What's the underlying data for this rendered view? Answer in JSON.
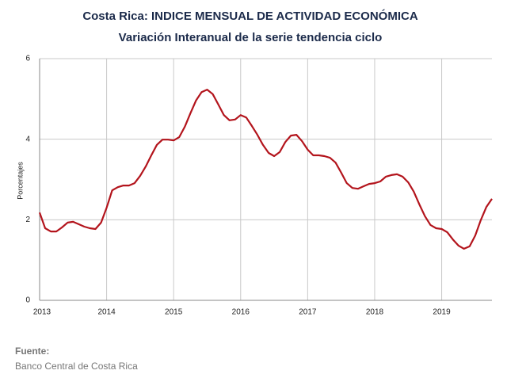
{
  "chart_data": {
    "type": "line",
    "title": "Costa Rica: INDICE MENSUAL DE ACTIVIDAD ECONÓMICA",
    "subtitle": "Variación Interanual de la serie tendencia ciclo",
    "y_label": "Porcentajes",
    "source_label": "Fuente:",
    "source": "Banco Central de Costa Rica",
    "x": [
      2013,
      2013.083,
      2013.167,
      2013.25,
      2013.333,
      2013.417,
      2013.5,
      2013.583,
      2013.667,
      2013.75,
      2013.833,
      2013.917,
      2014,
      2014.083,
      2014.167,
      2014.25,
      2014.333,
      2014.417,
      2014.5,
      2014.583,
      2014.667,
      2014.75,
      2014.833,
      2014.917,
      2015,
      2015.083,
      2015.167,
      2015.25,
      2015.333,
      2015.417,
      2015.5,
      2015.583,
      2015.667,
      2015.75,
      2015.833,
      2015.917,
      2016,
      2016.083,
      2016.167,
      2016.25,
      2016.333,
      2016.417,
      2016.5,
      2016.583,
      2016.667,
      2016.75,
      2016.833,
      2016.917,
      2017,
      2017.083,
      2017.167,
      2017.25,
      2017.333,
      2017.417,
      2017.5,
      2017.583,
      2017.667,
      2017.75,
      2017.833,
      2017.917,
      2018,
      2018.083,
      2018.167,
      2018.25,
      2018.333,
      2018.417,
      2018.5,
      2018.583,
      2018.667,
      2018.75,
      2018.833,
      2018.917,
      2019,
      2019.083,
      2019.167,
      2019.25,
      2019.333,
      2019.417,
      2019.5,
      2019.583,
      2019.667,
      2019.75
    ],
    "series": [
      {
        "name": "Variación interanual",
        "color": "#b3141c",
        "values": [
          2.18,
          1.79,
          1.71,
          1.71,
          1.81,
          1.93,
          1.95,
          1.89,
          1.83,
          1.79,
          1.77,
          1.93,
          2.3,
          2.73,
          2.81,
          2.85,
          2.85,
          2.91,
          3.09,
          3.32,
          3.6,
          3.86,
          3.99,
          3.99,
          3.97,
          4.05,
          4.31,
          4.64,
          4.96,
          5.17,
          5.23,
          5.12,
          4.86,
          4.6,
          4.47,
          4.49,
          4.6,
          4.54,
          4.33,
          4.11,
          3.86,
          3.66,
          3.58,
          3.68,
          3.93,
          4.09,
          4.11,
          3.95,
          3.74,
          3.6,
          3.6,
          3.58,
          3.54,
          3.42,
          3.17,
          2.91,
          2.79,
          2.77,
          2.83,
          2.89,
          2.91,
          2.95,
          3.07,
          3.11,
          3.13,
          3.07,
          2.93,
          2.7,
          2.38,
          2.09,
          1.87,
          1.79,
          1.77,
          1.69,
          1.51,
          1.36,
          1.28,
          1.34,
          1.61,
          1.99,
          2.32,
          2.52
        ]
      }
    ],
    "xlim": [
      2013,
      2019.75
    ],
    "xticks": [
      2013,
      2014,
      2015,
      2016,
      2017,
      2018,
      2019
    ],
    "ylim": [
      0,
      6
    ],
    "yticks": [
      0,
      2,
      4,
      6
    ],
    "grid": true
  }
}
